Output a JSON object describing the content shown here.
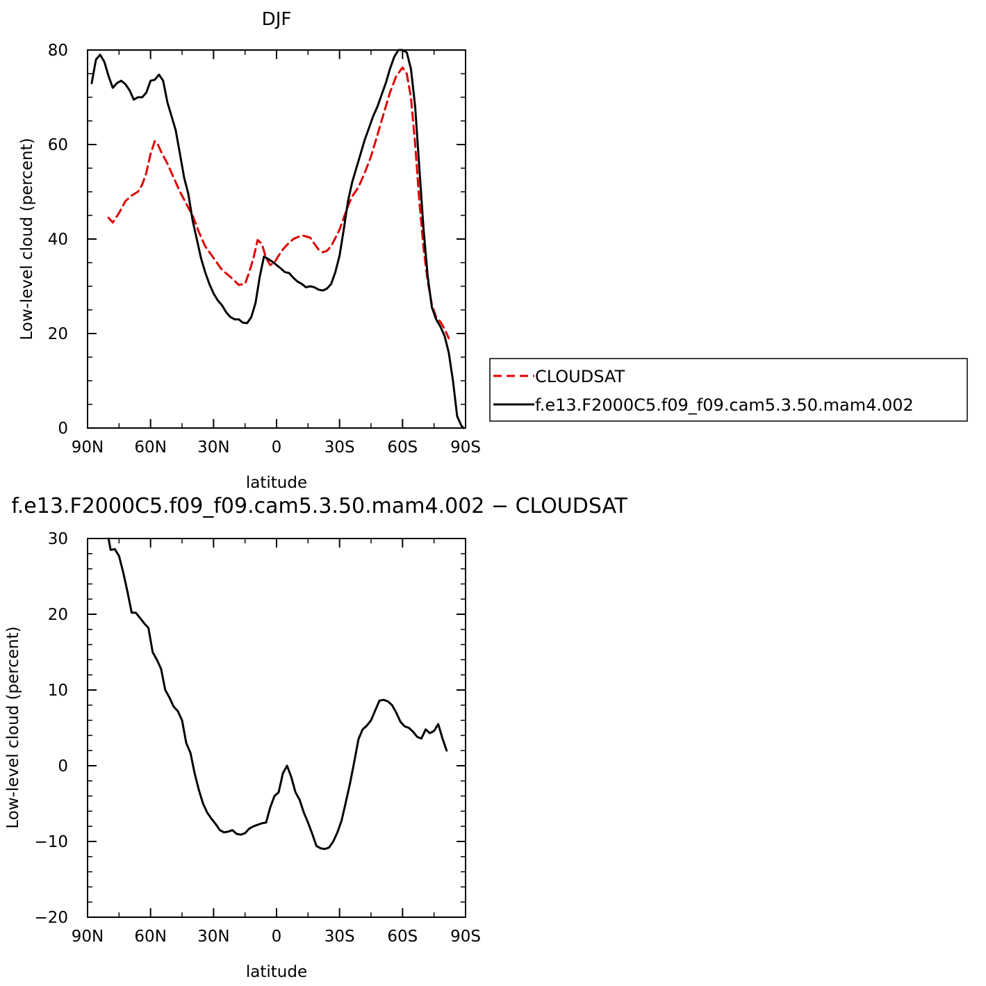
{
  "chart_data": [
    {
      "type": "line",
      "title": "DJF",
      "xlabel": "latitude",
      "ylabel": "Low-level cloud (percent)",
      "xlim": [
        -90,
        90
      ],
      "ylim": [
        0,
        80
      ],
      "x_ticks": [
        -90,
        -60,
        -30,
        0,
        30,
        60,
        90
      ],
      "x_tick_labels": [
        "90N",
        "60N",
        "30N",
        "0",
        "30S",
        "60S",
        "90S"
      ],
      "y_ticks": [
        0,
        20,
        40,
        60,
        80
      ],
      "y_tick_labels": [
        "0",
        "20",
        "40",
        "60",
        "80"
      ],
      "grid": false,
      "legend": "right",
      "series": [
        {
          "name": "CLOUDSAT",
          "color": "#e00000",
          "dash": true,
          "x": [
            -80,
            -78,
            -75,
            -72,
            -69,
            -66,
            -64,
            -62,
            -60,
            -58,
            -57,
            -55,
            -52,
            -49,
            -46,
            -43,
            -40,
            -37,
            -34,
            -30,
            -26,
            -22,
            -18,
            -15,
            -13,
            -11,
            -9,
            -7,
            -5,
            -3,
            -1,
            1,
            3,
            5,
            8,
            12,
            16,
            18,
            20,
            22,
            24,
            26,
            28,
            30,
            32,
            34,
            36,
            39,
            42,
            45,
            48,
            51,
            54,
            57,
            60,
            62,
            64,
            66,
            68,
            70,
            72,
            74,
            76,
            78,
            80,
            82
          ],
          "y": [
            44.5,
            43.5,
            45.5,
            48,
            49.2,
            50,
            51.5,
            54,
            58,
            60.7,
            60.5,
            58.5,
            56,
            53,
            50,
            47.5,
            45,
            41.5,
            38.5,
            36,
            33.5,
            32,
            30.3,
            30.5,
            33,
            36,
            39.8,
            39,
            36,
            34.5,
            35,
            36.5,
            37.8,
            38.8,
            40,
            40.8,
            40.3,
            39,
            37.8,
            37.2,
            37.5,
            38.5,
            40.2,
            42,
            44.5,
            47,
            49,
            51,
            54,
            57.5,
            62,
            66.5,
            71,
            74.5,
            76.3,
            75,
            70,
            60,
            48,
            38,
            31,
            26,
            23.5,
            22.5,
            21,
            19
          ]
        },
        {
          "name": "f.e13.F2000C5.f09_f09.cam5.3.50.mam4.002",
          "color": "#000000",
          "dash": false,
          "x": [
            -88,
            -86,
            -84,
            -82,
            -80,
            -78,
            -76,
            -74,
            -72,
            -70,
            -68,
            -66,
            -64,
            -62,
            -60,
            -58,
            -56,
            -54,
            -52,
            -50,
            -48,
            -46,
            -44,
            -42,
            -40,
            -38,
            -36,
            -34,
            -32,
            -30,
            -28,
            -26,
            -24,
            -22,
            -20,
            -18,
            -16,
            -14,
            -12,
            -10,
            -8,
            -6,
            -4,
            -2,
            0,
            2,
            4,
            6,
            8,
            10,
            12,
            14,
            16,
            18,
            20,
            22,
            24,
            26,
            28,
            30,
            32,
            34,
            36,
            38,
            40,
            42,
            44,
            46,
            48,
            50,
            52,
            54,
            56,
            58,
            60,
            62,
            64,
            66,
            68,
            70,
            72,
            74,
            76,
            78,
            80,
            82,
            84,
            86,
            88,
            89
          ],
          "y": [
            73,
            78,
            79,
            77.5,
            74.5,
            72,
            73,
            73.5,
            72.8,
            71.5,
            69.5,
            70,
            70,
            71,
            73.5,
            73.7,
            74.8,
            73.5,
            69,
            66,
            63,
            58,
            53,
            49.5,
            44,
            40,
            36,
            33,
            30.5,
            28.5,
            27,
            26,
            24.5,
            23.5,
            23,
            23,
            22.3,
            22.2,
            23.5,
            26.5,
            32,
            36.3,
            35.8,
            35.2,
            34.5,
            33.8,
            33,
            32.8,
            31.8,
            31,
            30.5,
            29.8,
            30,
            29.8,
            29.3,
            29.1,
            29.5,
            30.5,
            33,
            36.5,
            42,
            48,
            52,
            55,
            58,
            61,
            63.5,
            66,
            68,
            70.5,
            73,
            76,
            78.5,
            80,
            80,
            79.5,
            76,
            68,
            55,
            42,
            32,
            25.5,
            23,
            21.5,
            19.5,
            16,
            10,
            2.5,
            0.5,
            0
          ]
        }
      ]
    },
    {
      "type": "line",
      "title": "f.e13.F2000C5.f09_f09.cam5.3.50.mam4.002 − CLOUDSAT",
      "xlabel": "latitude",
      "ylabel": "Low-level cloud (percent)",
      "xlim": [
        -90,
        90
      ],
      "ylim": [
        -20,
        30
      ],
      "x_ticks": [
        -90,
        -60,
        -30,
        0,
        30,
        60,
        90
      ],
      "x_tick_labels": [
        "90N",
        "60N",
        "30N",
        "0",
        "30S",
        "60S",
        "90S"
      ],
      "y_ticks": [
        -20,
        -10,
        0,
        10,
        20,
        30
      ],
      "y_tick_labels": [
        "−20",
        "−10",
        "0",
        "10",
        "20",
        "30"
      ],
      "grid": false,
      "series": [
        {
          "color": "#000000",
          "dash": false,
          "x": [
            -80,
            -79,
            -77,
            -75,
            -73,
            -71,
            -69,
            -67,
            -65,
            -63,
            -61,
            -59,
            -57,
            -55,
            -53,
            -51,
            -49,
            -47,
            -45,
            -43,
            -41,
            -39,
            -37,
            -35,
            -33,
            -31,
            -29,
            -27,
            -25,
            -23,
            -21,
            -19,
            -17,
            -15,
            -13,
            -11,
            -9,
            -7,
            -5,
            -3,
            -1,
            1,
            3,
            5,
            7,
            9,
            11,
            13,
            15,
            17,
            19,
            21,
            23,
            25,
            27,
            29,
            31,
            33,
            35,
            37,
            39,
            41,
            43,
            45,
            47,
            49,
            51,
            53,
            55,
            57,
            59,
            61,
            63,
            65,
            67,
            69,
            71,
            73,
            75,
            77,
            79,
            81
          ],
          "y": [
            30,
            28.5,
            28.6,
            27.7,
            25.5,
            23,
            20.2,
            20.2,
            19.5,
            18.8,
            18.2,
            15,
            14,
            12.8,
            10,
            9,
            7.8,
            7.2,
            6,
            3,
            1.7,
            -1,
            -3.2,
            -5,
            -6.2,
            -7,
            -7.7,
            -8.5,
            -8.8,
            -8.7,
            -8.5,
            -9,
            -9.1,
            -8.9,
            -8.3,
            -8,
            -7.8,
            -7.6,
            -7.5,
            -5.5,
            -4,
            -3.5,
            -1,
            0,
            -1.5,
            -3.5,
            -4.5,
            -6.2,
            -7.5,
            -9,
            -10.6,
            -10.9,
            -11,
            -10.8,
            -10,
            -8.8,
            -7.2,
            -4.8,
            -2.3,
            0.5,
            3.5,
            4.8,
            5.3,
            6,
            7.3,
            8.6,
            8.7,
            8.5,
            8,
            7,
            5.8,
            5.2,
            5,
            4.5,
            3.8,
            3.6,
            4.8,
            4.3,
            4.6,
            5.5,
            3.6,
            2
          ]
        }
      ]
    }
  ]
}
